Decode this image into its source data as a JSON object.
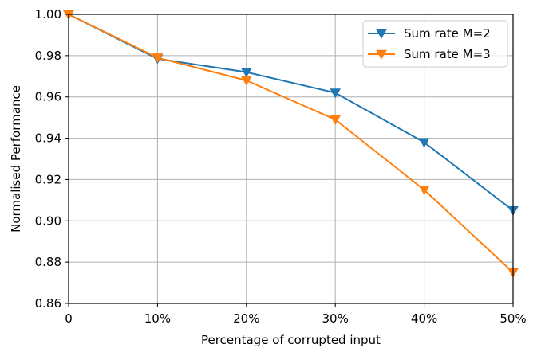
{
  "chart_data": {
    "type": "line",
    "title": "",
    "xlabel": "Percentage of corrupted input",
    "ylabel": "Normalised Performance",
    "categories": [
      "0",
      "10%",
      "20%",
      "30%",
      "40%",
      "50%"
    ],
    "x": [
      0,
      10,
      20,
      30,
      40,
      50
    ],
    "xlim": [
      0,
      50
    ],
    "ylim": [
      0.86,
      1.0
    ],
    "yticks": [
      0.86,
      0.88,
      0.9,
      0.92,
      0.94,
      0.96,
      0.98,
      1.0
    ],
    "ytick_labels": [
      "0.86",
      "0.88",
      "0.90",
      "0.92",
      "0.94",
      "0.96",
      "0.98",
      "1.00"
    ],
    "grid": true,
    "legend_position": "top-right",
    "series": [
      {
        "name": "Sum rate M=2",
        "color": "#1f77b4",
        "marker": "triangle-down",
        "values": [
          1.0,
          0.9785,
          0.972,
          0.962,
          0.938,
          0.905
        ]
      },
      {
        "name": "Sum rate M=3",
        "color": "#ff7f0e",
        "marker": "triangle-down",
        "values": [
          1.0,
          0.979,
          0.968,
          0.949,
          0.915,
          0.875
        ]
      }
    ]
  }
}
